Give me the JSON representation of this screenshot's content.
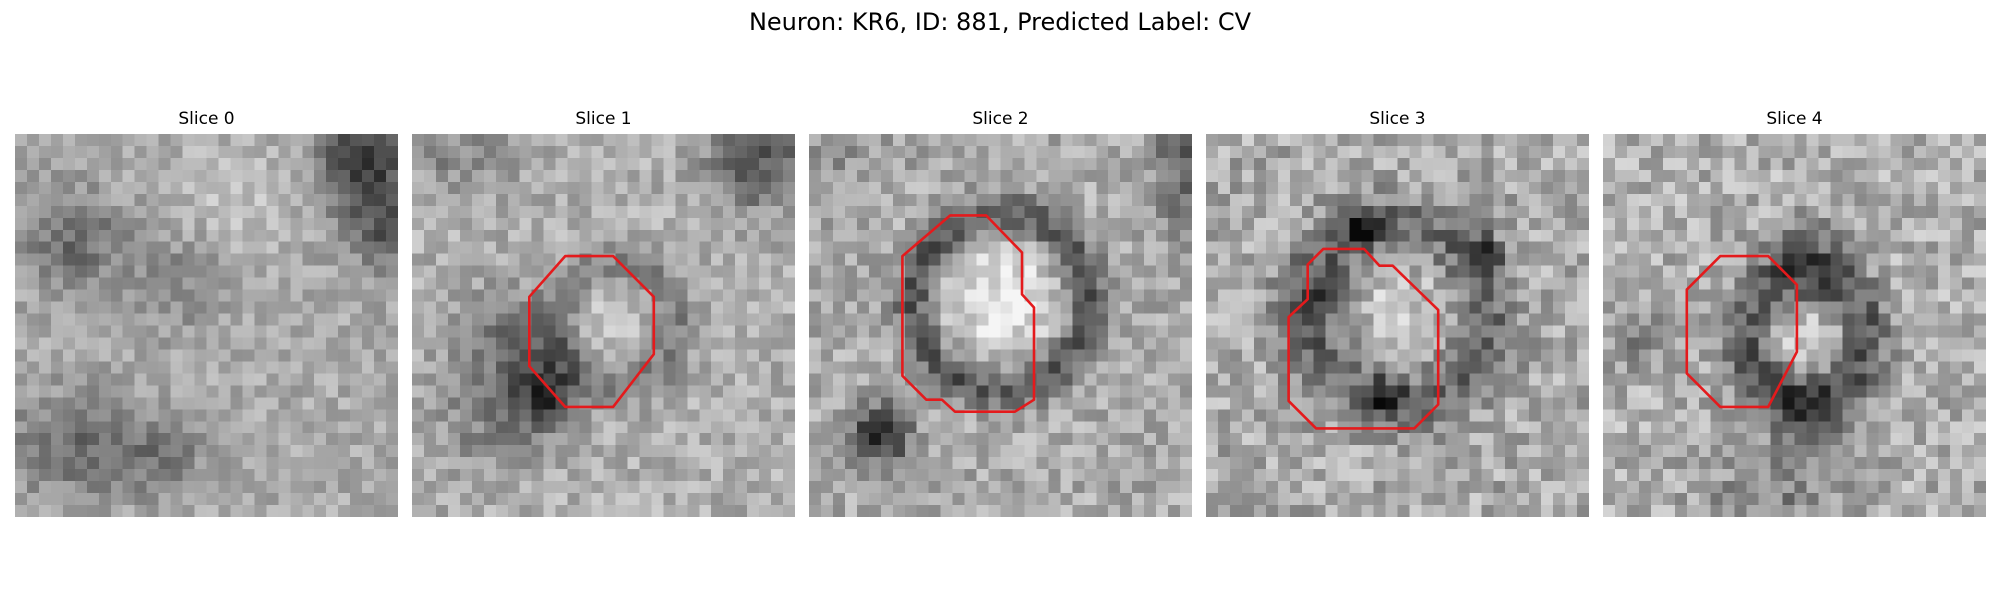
{
  "figure": {
    "suptitle": "Neuron: KR6, ID: 881, Predicted Label: CV"
  },
  "panels": [
    {
      "title": "Slice 0",
      "has_contour": false
    },
    {
      "title": "Slice 1",
      "has_contour": true
    },
    {
      "title": "Slice 2",
      "has_contour": true
    },
    {
      "title": "Slice 3",
      "has_contour": true
    },
    {
      "title": "Slice 4",
      "has_contour": true
    }
  ],
  "style": {
    "contour_color": "#e41a1c",
    "colormap": "grayscale"
  }
}
